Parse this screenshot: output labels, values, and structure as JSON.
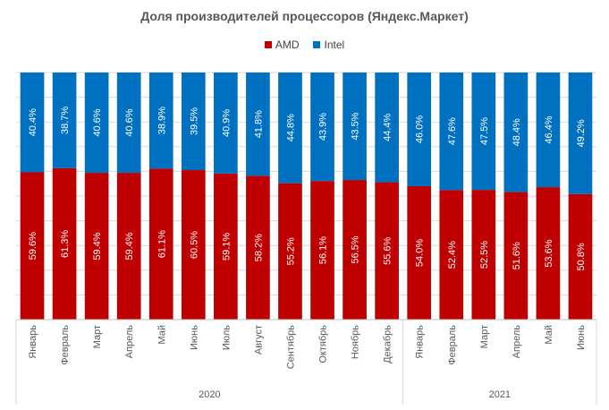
{
  "chart_data": {
    "type": "bar",
    "stacked": "percent",
    "title": "Доля производителей процессоров (Яндекс.Маркет)",
    "categories": [
      "Январь",
      "Февраль",
      "Март",
      "Апрель",
      "Май",
      "Июнь",
      "Июль",
      "Август",
      "Сентябрь",
      "Октябрь",
      "Ноябрь",
      "Декабрь",
      "Январь",
      "Февраль",
      "Март",
      "Апрель",
      "Май",
      "Июнь"
    ],
    "groups": [
      {
        "label": "2020",
        "count": 12
      },
      {
        "label": "2021",
        "count": 6
      }
    ],
    "series": [
      {
        "name": "AMD",
        "color": "#C00000",
        "values": [
          59.6,
          61.3,
          59.4,
          59.4,
          61.1,
          60.5,
          59.1,
          58.2,
          55.2,
          56.1,
          56.5,
          55.6,
          54.0,
          52.4,
          52.5,
          51.6,
          53.6,
          50.8
        ],
        "labels": [
          "59.6%",
          "61.3%",
          "59.4%",
          "59.4%",
          "61.1%",
          "60.5%",
          "59.1%",
          "58.2%",
          "55.2%",
          "56.1%",
          "56.5%",
          "55.6%",
          "54.0%",
          "52.4%",
          "52.5%",
          "51.6%",
          "53.6%",
          "50.8%"
        ]
      },
      {
        "name": "Intel",
        "color": "#0070C0",
        "values": [
          40.4,
          38.7,
          40.6,
          40.6,
          38.9,
          39.5,
          40.9,
          41.8,
          44.8,
          43.9,
          43.5,
          44.4,
          46.0,
          47.6,
          47.5,
          48.4,
          46.4,
          49.2
        ],
        "labels": [
          "40.4%",
          "38.7%",
          "40.6%",
          "40.6%",
          "38.9%",
          "39.5%",
          "40.9%",
          "41.8%",
          "44.8%",
          "43.9%",
          "43.5%",
          "44.4%",
          "46.0%",
          "47.6%",
          "47.5%",
          "48.4%",
          "46.4%",
          "49.2%"
        ]
      }
    ],
    "ylim": [
      0,
      100
    ],
    "grid": true,
    "legend_position": "top"
  }
}
